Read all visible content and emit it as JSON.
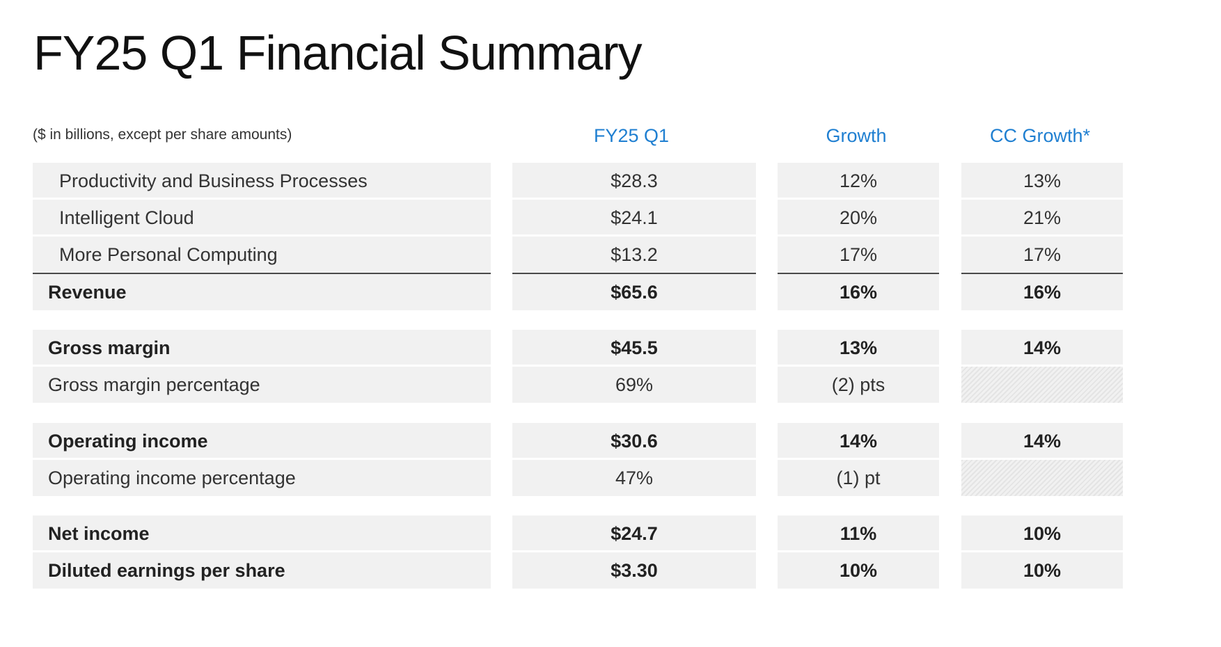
{
  "title": "FY25 Q1 Financial Summary",
  "units_note": "($ in billions, except per share amounts)",
  "columns": {
    "value": "FY25 Q1",
    "growth": "Growth",
    "cc_growth": "CC Growth*"
  },
  "colors": {
    "header_blue": "#1f7fd1",
    "cell_bg": "#f1f1f1"
  },
  "rows": {
    "pbp": {
      "label": "Productivity and Business Processes",
      "value": "$28.3",
      "growth": "12%",
      "cc_growth": "13%"
    },
    "ic": {
      "label": "Intelligent Cloud",
      "value": "$24.1",
      "growth": "20%",
      "cc_growth": "21%"
    },
    "mpc": {
      "label": "More Personal Computing",
      "value": "$13.2",
      "growth": "17%",
      "cc_growth": "17%"
    },
    "revenue": {
      "label": "Revenue",
      "value": "$65.6",
      "growth": "16%",
      "cc_growth": "16%"
    },
    "gross_margin": {
      "label": "Gross margin",
      "value": "$45.5",
      "growth": "13%",
      "cc_growth": "14%"
    },
    "gross_margin_pct": {
      "label": "Gross margin percentage",
      "value": "69%",
      "growth": "(2) pts"
    },
    "operating_income": {
      "label": "Operating income",
      "value": "$30.6",
      "growth": "14%",
      "cc_growth": "14%"
    },
    "operating_income_pct": {
      "label": "Operating income percentage",
      "value": "47%",
      "growth": "(1) pt"
    },
    "net_income": {
      "label": "Net income",
      "value": "$24.7",
      "growth": "11%",
      "cc_growth": "10%"
    },
    "diluted_eps": {
      "label": "Diluted earnings per share",
      "value": "$3.30",
      "growth": "10%",
      "cc_growth": "10%"
    }
  }
}
